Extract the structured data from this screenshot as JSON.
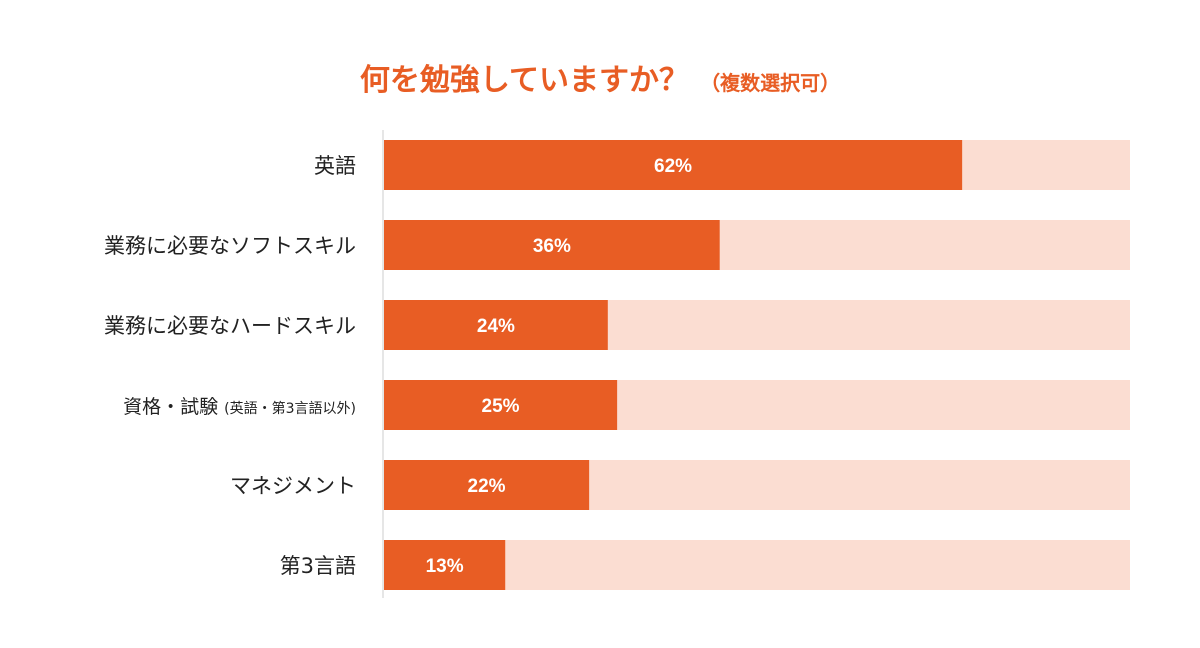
{
  "chart_data": {
    "type": "bar",
    "orientation": "horizontal",
    "title": "何を勉強していますか？",
    "subtitle": "（複数選択可）",
    "categories": [
      "英語",
      "業務に必要なソフトスキル",
      "業務に必要なハードスキル",
      "資格・試験",
      "マネジメント",
      "第3言語"
    ],
    "category_notes": [
      "",
      "",
      "",
      "(英語・第3言語以外)",
      "",
      ""
    ],
    "values": [
      62,
      36,
      24,
      25,
      22,
      13
    ],
    "value_labels": [
      "62%",
      "36%",
      "24%",
      "25%",
      "22%",
      "13%"
    ],
    "xlim": [
      0,
      80
    ],
    "legend": "none",
    "grid": false
  },
  "colors": {
    "bar": "#E85D24",
    "track": "#FBDDD2",
    "title": "#E85D24",
    "label": "#222222",
    "value_label": "#ffffff",
    "axis": "#cccccc"
  }
}
